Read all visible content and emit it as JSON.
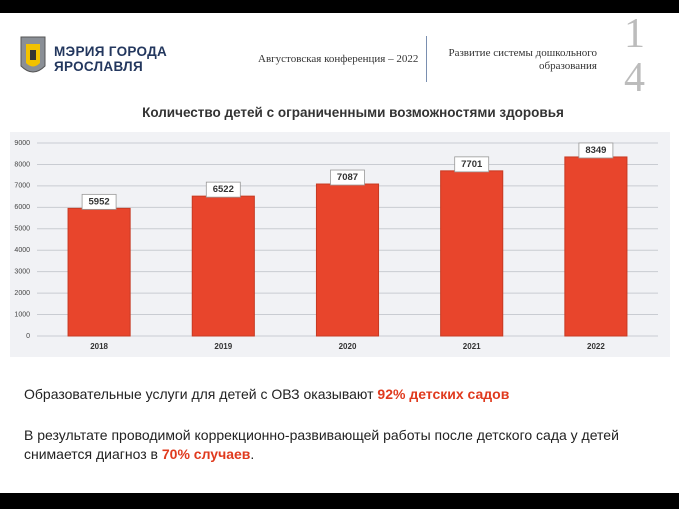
{
  "header": {
    "logo_line1": "МЭРИЯ ГОРОДА",
    "logo_line2": "ЯРОСЛАВЛЯ",
    "conference": "Августовская конференция – 2022",
    "section": "Развитие системы дошкольного образования",
    "slide_number": "14"
  },
  "chart_data": {
    "type": "bar",
    "title": "Количество детей с ограниченными возможностями здоровья",
    "categories": [
      "2018",
      "2019",
      "2020",
      "2021",
      "2022"
    ],
    "values": [
      5952,
      6522,
      7087,
      7701,
      8349
    ],
    "color": "#e8452c",
    "ylim": [
      0,
      9000
    ],
    "yticks": [
      0,
      1000,
      2000,
      3000,
      4000,
      5000,
      6000,
      7000,
      8000,
      9000
    ],
    "grid": true
  },
  "notes": [
    {
      "text": "Образовательные услуги для детей с ОВЗ оказывают ",
      "highlight": "92% детских садов"
    },
    {
      "text": "В результате проводимой коррекционно-развивающей работы после детского сада у детей снимается диагноз в ",
      "highlight": "70% случаев",
      "tail": "."
    }
  ]
}
